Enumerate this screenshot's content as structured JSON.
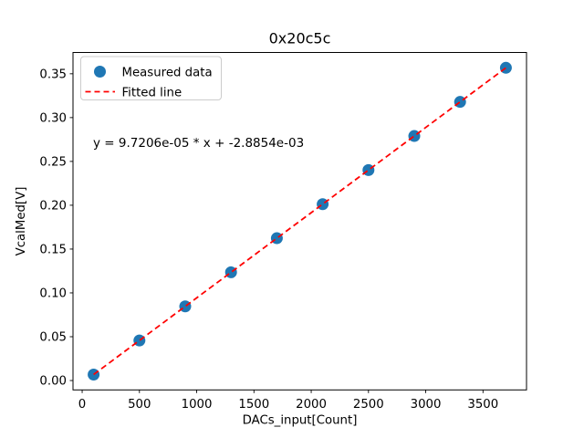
{
  "chart_data": {
    "type": "scatter",
    "title": "0x20c5c",
    "xlabel": "DACs_input[Count]",
    "ylabel": "VcalMed[V]",
    "annotation": "y = 9.7206e-05 * x + -2.8854e-03",
    "grid": false,
    "xlim": [
      -80,
      3880
    ],
    "ylim": [
      -0.0107,
      0.3743
    ],
    "xticks": {
      "values": [
        0,
        500,
        1000,
        1500,
        2000,
        2500,
        3000,
        3500
      ],
      "labels": [
        "0",
        "500",
        "1000",
        "1500",
        "2000",
        "2500",
        "3000",
        "3500"
      ]
    },
    "yticks": {
      "values": [
        0.0,
        0.05,
        0.1,
        0.15,
        0.2,
        0.25,
        0.3,
        0.35
      ],
      "labels": [
        "0.00",
        "0.05",
        "0.10",
        "0.15",
        "0.20",
        "0.25",
        "0.30",
        "0.35"
      ]
    },
    "legend": {
      "position": "upper left",
      "entries": [
        {
          "label": "Measured data",
          "marker": "filled-circle",
          "color": "#1f77b4"
        },
        {
          "label": "Fitted line",
          "marker": "dashed-line",
          "color": "#ff0000"
        }
      ]
    },
    "series": [
      {
        "name": "Measured data",
        "type": "scatter",
        "color": "#1f77b4",
        "x": [
          100,
          500,
          900,
          1300,
          1700,
          2100,
          2500,
          2900,
          3300,
          3700
        ],
        "y": [
          0.0068,
          0.0457,
          0.0846,
          0.1235,
          0.1624,
          0.2012,
          0.2401,
          0.279,
          0.3179,
          0.3568
        ]
      },
      {
        "name": "Fitted line",
        "type": "line",
        "linestyle": "dashed",
        "color": "#ff0000",
        "slope": 9.7206e-05,
        "intercept": -0.0028854,
        "x_range": [
          100,
          3700
        ]
      }
    ]
  }
}
